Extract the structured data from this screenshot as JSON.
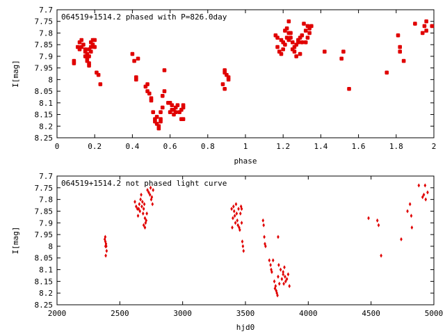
{
  "chart_data": [
    {
      "type": "scatter",
      "title": "064519+1514.2 phased with P=826.0day",
      "xlabel": "phase",
      "ylabel": "I[mag]",
      "xlim": [
        0,
        2
      ],
      "ylim": [
        8.25,
        7.7
      ],
      "y_inverted": true,
      "grid": false,
      "marker_color": "#e00000",
      "xticks": [
        "0",
        "0.2",
        "0.4",
        "0.6",
        "0.8",
        "1",
        "1.2",
        "1.4",
        "1.6",
        "1.8",
        "2"
      ],
      "yticks": [
        "7.7",
        "7.75",
        "7.8",
        "7.85",
        "7.9",
        "7.95",
        "8",
        "8.05",
        "8.1",
        "8.15",
        "8.2",
        "8.25"
      ],
      "series": [
        {
          "points": [
            [
              0.09,
              7.92
            ],
            [
              0.09,
              7.93
            ],
            [
              0.11,
              7.86
            ],
            [
              0.12,
              7.84
            ],
            [
              0.12,
              7.87
            ],
            [
              0.13,
              7.83
            ],
            [
              0.13,
              7.86
            ],
            [
              0.14,
              7.85
            ],
            [
              0.15,
              7.87
            ],
            [
              0.15,
              7.88
            ],
            [
              0.15,
              7.9
            ],
            [
              0.16,
              7.91
            ],
            [
              0.16,
              7.92
            ],
            [
              0.16,
              7.89
            ],
            [
              0.17,
              7.93
            ],
            [
              0.17,
              7.94
            ],
            [
              0.17,
              7.9
            ],
            [
              0.17,
              7.87
            ],
            [
              0.18,
              7.84
            ],
            [
              0.18,
              7.86
            ],
            [
              0.18,
              7.88
            ],
            [
              0.19,
              7.85
            ],
            [
              0.19,
              7.83
            ],
            [
              0.2,
              7.83
            ],
            [
              0.2,
              7.86
            ],
            [
              0.21,
              7.97
            ],
            [
              0.22,
              7.98
            ],
            [
              0.23,
              8.02
            ],
            [
              0.4,
              7.89
            ],
            [
              0.41,
              7.92
            ],
            [
              0.42,
              7.99
            ],
            [
              0.42,
              8.0
            ],
            [
              0.43,
              7.91
            ],
            [
              0.47,
              8.03
            ],
            [
              0.48,
              8.02
            ],
            [
              0.48,
              8.05
            ],
            [
              0.49,
              8.06
            ],
            [
              0.5,
              8.09
            ],
            [
              0.5,
              8.08
            ],
            [
              0.51,
              8.14
            ],
            [
              0.52,
              8.17
            ],
            [
              0.52,
              8.18
            ],
            [
              0.53,
              8.16
            ],
            [
              0.53,
              8.19
            ],
            [
              0.54,
              8.2
            ],
            [
              0.54,
              8.21
            ],
            [
              0.55,
              8.18
            ],
            [
              0.55,
              8.17
            ],
            [
              0.55,
              8.14
            ],
            [
              0.56,
              8.12
            ],
            [
              0.56,
              8.07
            ],
            [
              0.57,
              8.05
            ],
            [
              0.57,
              7.96
            ],
            [
              0.59,
              8.1
            ],
            [
              0.6,
              8.14
            ],
            [
              0.6,
              8.1
            ],
            [
              0.61,
              8.11
            ],
            [
              0.61,
              8.13
            ],
            [
              0.62,
              8.13
            ],
            [
              0.62,
              8.15
            ],
            [
              0.63,
              8.14
            ],
            [
              0.63,
              8.12
            ],
            [
              0.64,
              8.11
            ],
            [
              0.65,
              8.14
            ],
            [
              0.66,
              8.13
            ],
            [
              0.66,
              8.17
            ],
            [
              0.67,
              8.17
            ],
            [
              0.67,
              8.12
            ],
            [
              0.67,
              8.11
            ],
            [
              0.88,
              8.02
            ],
            [
              0.89,
              7.96
            ],
            [
              0.89,
              7.97
            ],
            [
              0.89,
              8.04
            ],
            [
              0.9,
              7.98
            ],
            [
              0.91,
              7.99
            ],
            [
              0.91,
              8.0
            ],
            [
              1.16,
              7.81
            ],
            [
              1.17,
              7.82
            ],
            [
              1.17,
              7.86
            ],
            [
              1.18,
              7.88
            ],
            [
              1.19,
              7.83
            ],
            [
              1.19,
              7.89
            ],
            [
              1.2,
              7.87
            ],
            [
              1.2,
              7.84
            ],
            [
              1.21,
              7.85
            ],
            [
              1.21,
              7.79
            ],
            [
              1.22,
              7.82
            ],
            [
              1.22,
              7.78
            ],
            [
              1.23,
              7.8
            ],
            [
              1.23,
              7.83
            ],
            [
              1.23,
              7.75
            ],
            [
              1.24,
              7.8
            ],
            [
              1.24,
              7.82
            ],
            [
              1.25,
              7.84
            ],
            [
              1.25,
              7.87
            ],
            [
              1.26,
              7.88
            ],
            [
              1.26,
              7.86
            ],
            [
              1.27,
              7.9
            ],
            [
              1.27,
              7.85
            ],
            [
              1.28,
              7.83
            ],
            [
              1.28,
              7.84
            ],
            [
              1.29,
              7.82
            ],
            [
              1.29,
              7.89
            ],
            [
              1.3,
              7.84
            ],
            [
              1.3,
              7.81
            ],
            [
              1.31,
              7.76
            ],
            [
              1.32,
              7.79
            ],
            [
              1.32,
              7.84
            ],
            [
              1.33,
              7.82
            ],
            [
              1.33,
              7.77
            ],
            [
              1.34,
              7.78
            ],
            [
              1.34,
              7.8
            ],
            [
              1.35,
              7.77
            ],
            [
              1.42,
              7.88
            ],
            [
              1.51,
              7.91
            ],
            [
              1.52,
              7.88
            ],
            [
              1.55,
              8.04
            ],
            [
              1.75,
              7.97
            ],
            [
              1.81,
              7.81
            ],
            [
              1.82,
              7.86
            ],
            [
              1.82,
              7.88
            ],
            [
              1.84,
              7.92
            ],
            [
              1.9,
              7.76
            ],
            [
              1.94,
              7.8
            ],
            [
              1.95,
              7.77
            ],
            [
              1.96,
              7.75
            ],
            [
              1.96,
              7.79
            ],
            [
              1.99,
              7.77
            ]
          ]
        }
      ]
    },
    {
      "type": "scatter",
      "title": "064519+1514.2 not phased light curve",
      "xlabel": "hjd0",
      "ylabel": "I[mag]",
      "xlim": [
        2000,
        5000
      ],
      "ylim": [
        8.25,
        7.7
      ],
      "y_inverted": true,
      "grid": false,
      "marker_color": "#e00000",
      "xticks": [
        "2000",
        "2500",
        "3000",
        "3500",
        "4000",
        "4500",
        "5000"
      ],
      "yticks": [
        "7.7",
        "7.75",
        "7.8",
        "7.85",
        "7.9",
        "7.95",
        "8",
        "8.05",
        "8.1",
        "8.15",
        "8.2",
        "8.25"
      ],
      "series": [
        {
          "points": [
            [
              2380,
              7.97
            ],
            [
              2385,
              7.98
            ],
            [
              2390,
              7.99
            ],
            [
              2392,
              8.0
            ],
            [
              2395,
              8.02
            ],
            [
              2388,
              8.04
            ],
            [
              2386,
              8.0
            ],
            [
              2384,
              7.96
            ],
            [
              2620,
              7.81
            ],
            [
              2630,
              7.83
            ],
            [
              2640,
              7.84
            ],
            [
              2645,
              7.87
            ],
            [
              2650,
              7.84
            ],
            [
              2655,
              7.82
            ],
            [
              2660,
              7.85
            ],
            [
              2665,
              7.8
            ],
            [
              2670,
              7.78
            ],
            [
              2675,
              7.83
            ],
            [
              2680,
              7.81
            ],
            [
              2685,
              7.86
            ],
            [
              2690,
              7.84
            ],
            [
              2695,
              7.82
            ],
            [
              2700,
              7.88
            ],
            [
              2705,
              7.9
            ],
            [
              2710,
              7.89
            ],
            [
              2715,
              7.86
            ],
            [
              2720,
              7.76
            ],
            [
              2730,
              7.77
            ],
            [
              2740,
              7.78
            ],
            [
              2745,
              7.75
            ],
            [
              2750,
              7.8
            ],
            [
              2760,
              7.82
            ],
            [
              2765,
              7.76
            ],
            [
              2755,
              7.79
            ],
            [
              2690,
              7.91
            ],
            [
              2700,
              7.92
            ],
            [
              3390,
              7.84
            ],
            [
              3395,
              7.92
            ],
            [
              3400,
              7.88
            ],
            [
              3405,
              7.83
            ],
            [
              3410,
              7.85
            ],
            [
              3415,
              7.87
            ],
            [
              3420,
              7.9
            ],
            [
              3425,
              7.82
            ],
            [
              3430,
              7.86
            ],
            [
              3435,
              7.89
            ],
            [
              3440,
              7.91
            ],
            [
              3445,
              7.84
            ],
            [
              3450,
              7.92
            ],
            [
              3455,
              7.93
            ],
            [
              3460,
              7.86
            ],
            [
              3465,
              7.83
            ],
            [
              3470,
              7.9
            ],
            [
              3475,
              7.98
            ],
            [
              3480,
              8.0
            ],
            [
              3485,
              8.02
            ],
            [
              3470,
              7.84
            ],
            [
              3640,
              7.89
            ],
            [
              3645,
              7.91
            ],
            [
              3650,
              7.96
            ],
            [
              3655,
              7.99
            ],
            [
              3660,
              8.0
            ],
            [
              3690,
              8.06
            ],
            [
              3700,
              8.08
            ],
            [
              3705,
              8.1
            ],
            [
              3710,
              8.11
            ],
            [
              3720,
              8.06
            ],
            [
              3730,
              8.15
            ],
            [
              3735,
              8.18
            ],
            [
              3740,
              8.17
            ],
            [
              3745,
              8.19
            ],
            [
              3750,
              8.2
            ],
            [
              3755,
              8.21
            ],
            [
              3760,
              8.13
            ],
            [
              3765,
              8.08
            ],
            [
              3770,
              8.16
            ],
            [
              3780,
              8.1
            ],
            [
              3790,
              8.14
            ],
            [
              3800,
              8.12
            ],
            [
              3805,
              8.16
            ],
            [
              3810,
              8.09
            ],
            [
              3815,
              8.13
            ],
            [
              3820,
              8.15
            ],
            [
              3830,
              8.14
            ],
            [
              3840,
              8.12
            ],
            [
              3850,
              8.17
            ],
            [
              3760,
              7.96
            ],
            [
              3800,
              8.11
            ],
            [
              4480,
              7.88
            ],
            [
              4550,
              7.89
            ],
            [
              4560,
              7.91
            ],
            [
              4580,
              8.04
            ],
            [
              4740,
              7.97
            ],
            [
              4790,
              7.85
            ],
            [
              4810,
              7.82
            ],
            [
              4820,
              7.87
            ],
            [
              4825,
              7.92
            ],
            [
              4880,
              7.74
            ],
            [
              4910,
              7.79
            ],
            [
              4920,
              7.78
            ],
            [
              4930,
              7.74
            ],
            [
              4935,
              7.8
            ],
            [
              4950,
              7.77
            ]
          ]
        }
      ]
    }
  ]
}
